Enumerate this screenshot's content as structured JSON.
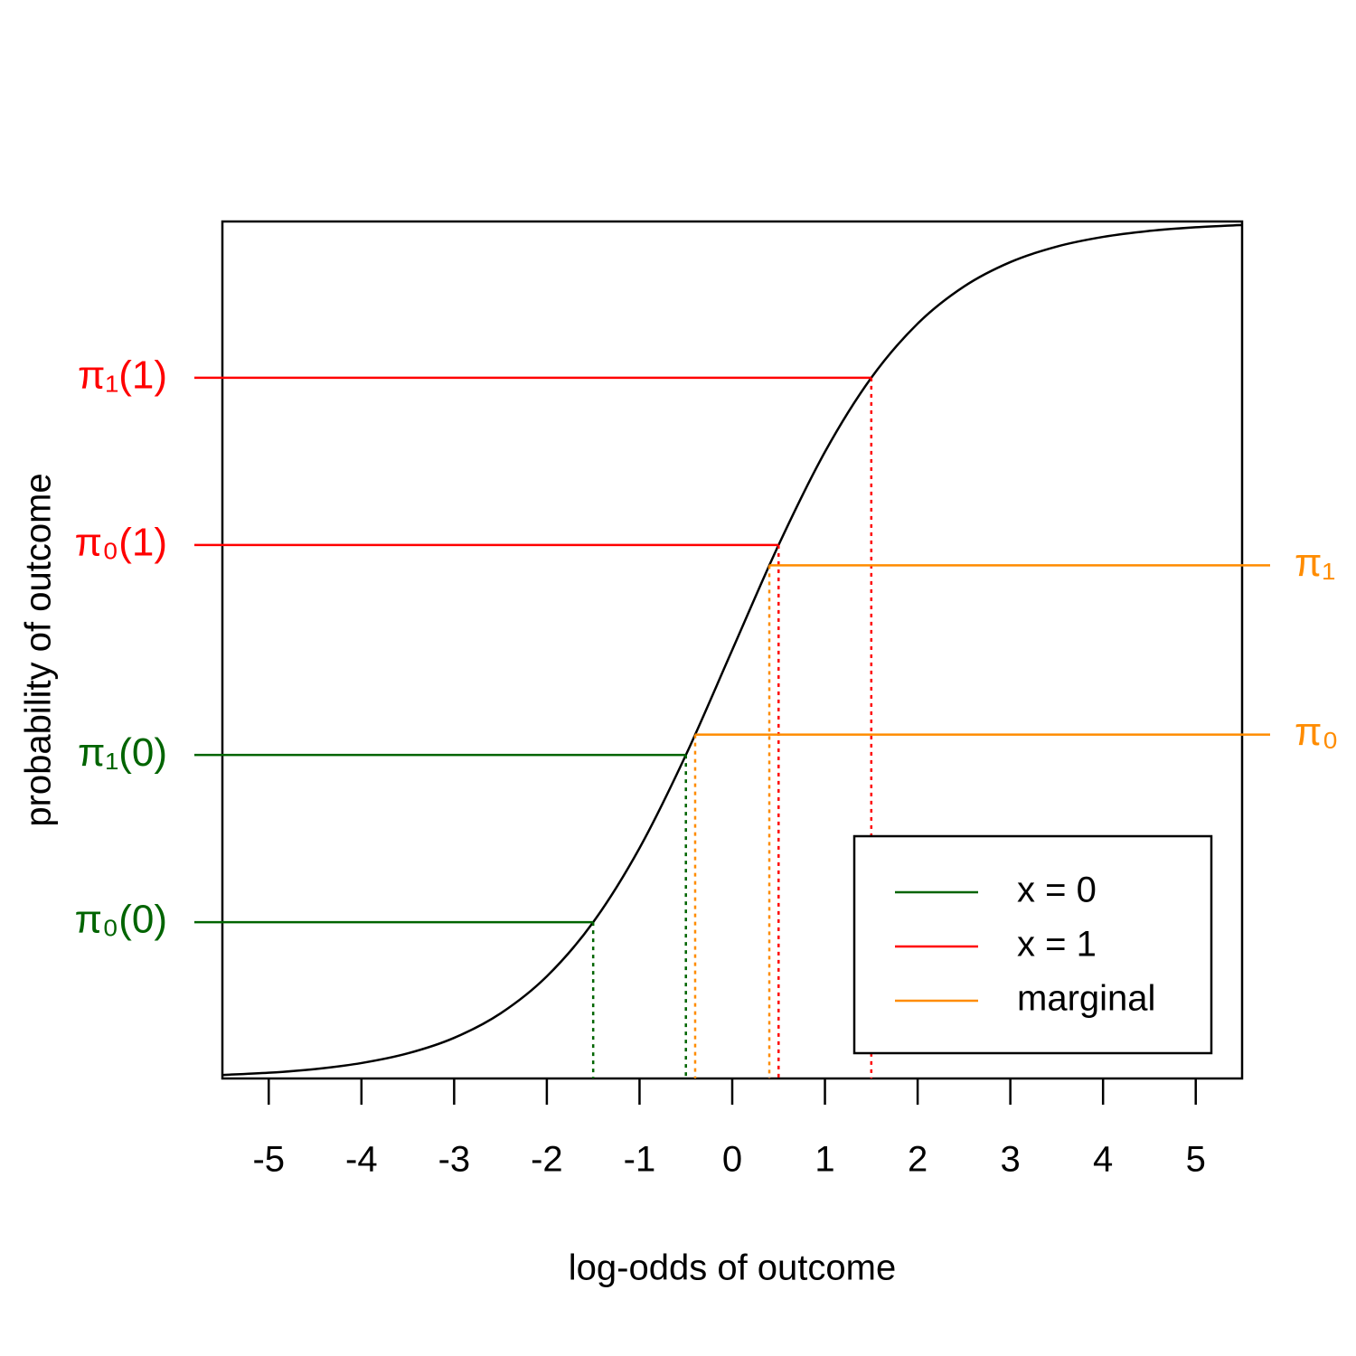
{
  "chart_data": {
    "type": "line",
    "xlabel": "log-odds of outcome",
    "ylabel": "probability of outcome",
    "xlim": [
      -5.5,
      5.5
    ],
    "ylim": [
      0,
      1
    ],
    "xticks": [
      -5,
      -4,
      -3,
      -2,
      -1,
      0,
      1,
      2,
      3,
      4,
      5
    ],
    "curve": {
      "color": "#000000",
      "x": [
        -5.5,
        -5,
        -4.5,
        -4,
        -3.5,
        -3,
        -2.5,
        -2,
        -1.5,
        -1,
        -0.5,
        0,
        0.5,
        1,
        1.5,
        2,
        2.5,
        3,
        3.5,
        4,
        4.5,
        5,
        5.5
      ],
      "values": [
        0.0041,
        0.0067,
        0.011,
        0.018,
        0.0293,
        0.0474,
        0.0759,
        0.1192,
        0.1824,
        0.2689,
        0.3775,
        0.5,
        0.6225,
        0.7311,
        0.8176,
        0.8808,
        0.9241,
        0.9526,
        0.9707,
        0.982,
        0.989,
        0.9933,
        0.9959
      ]
    },
    "groups": [
      {
        "name": "x = 0",
        "color": "#006400"
      },
      {
        "name": "x = 1",
        "color": "#ff0000"
      },
      {
        "name": "marginal",
        "color": "#ff8c00"
      }
    ],
    "annotations": [
      {
        "label": "π₀(0)",
        "x": -1.5,
        "y": 0.1824,
        "group": 0,
        "side": "left"
      },
      {
        "label": "π₁(0)",
        "x": -0.5,
        "y": 0.3775,
        "group": 0,
        "side": "left"
      },
      {
        "label": "π₀(1)",
        "x": 0.5,
        "y": 0.6225,
        "group": 1,
        "side": "left"
      },
      {
        "label": "π₁(1)",
        "x": 1.5,
        "y": 0.8176,
        "group": 1,
        "side": "left"
      },
      {
        "label": "π₀",
        "x": -0.4,
        "y": 0.4013,
        "group": 2,
        "side": "right"
      },
      {
        "label": "π₁",
        "x": 0.4,
        "y": 0.5987,
        "group": 2,
        "side": "right"
      }
    ],
    "legend": "bottomright"
  }
}
